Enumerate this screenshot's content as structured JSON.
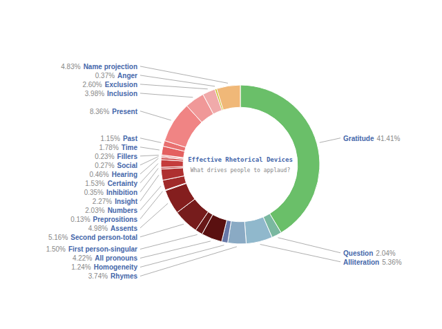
{
  "chart_data": {
    "type": "pie",
    "title": "Effective Rhetorical Devices",
    "subtitle": "What drives people to applaud?",
    "categories": [
      "Gratitude",
      "Question",
      "Alliteration",
      "Rhymes",
      "Homogeneity",
      "All pronouns",
      "First person-singular",
      "Second person-total",
      "Assents",
      "Preprositions",
      "Numbers",
      "Insight",
      "Inhibition",
      "Certainty",
      "Hearing",
      "Social",
      "Fillers",
      "Time",
      "Past",
      "Present",
      "Inclusion",
      "Exclusion",
      "Anger",
      "Name projection"
    ],
    "values": [
      41.41,
      2.04,
      5.36,
      3.74,
      1.24,
      4.22,
      1.5,
      5.16,
      4.98,
      0.13,
      2.03,
      2.27,
      0.35,
      1.53,
      0.46,
      0.27,
      0.23,
      1.78,
      1.15,
      8.36,
      3.98,
      2.6,
      0.37,
      4.83
    ],
    "value_labels": [
      "41.41%",
      "2.04%",
      "5.36%",
      "3.74%",
      "1.24%",
      "4.22%",
      "1.50%",
      "5.16%",
      "4.98%",
      "0.13%",
      "2.03%",
      "2.27%",
      "0.35%",
      "1.53%",
      "0.46%",
      "0.27%",
      "0.23%",
      "1.78%",
      "1.15%",
      "8.36%",
      "3.98%",
      "2.60%",
      "0.37%",
      "4.83%"
    ],
    "colors": [
      "#6abf69",
      "#7ab8a0",
      "#90b8cc",
      "#8aaac4",
      "#6878a8",
      "#5a1010",
      "#681818",
      "#761c1c",
      "#841e1e",
      "#922424",
      "#a02a2a",
      "#ae3030",
      "#bc3636",
      "#c43c3c",
      "#cc4444",
      "#d44c4c",
      "#dc5454",
      "#e46060",
      "#e87070",
      "#f08484",
      "#f09898",
      "#f0aaaa",
      "#c8b820",
      "#f0b878"
    ],
    "data_labels": true
  }
}
